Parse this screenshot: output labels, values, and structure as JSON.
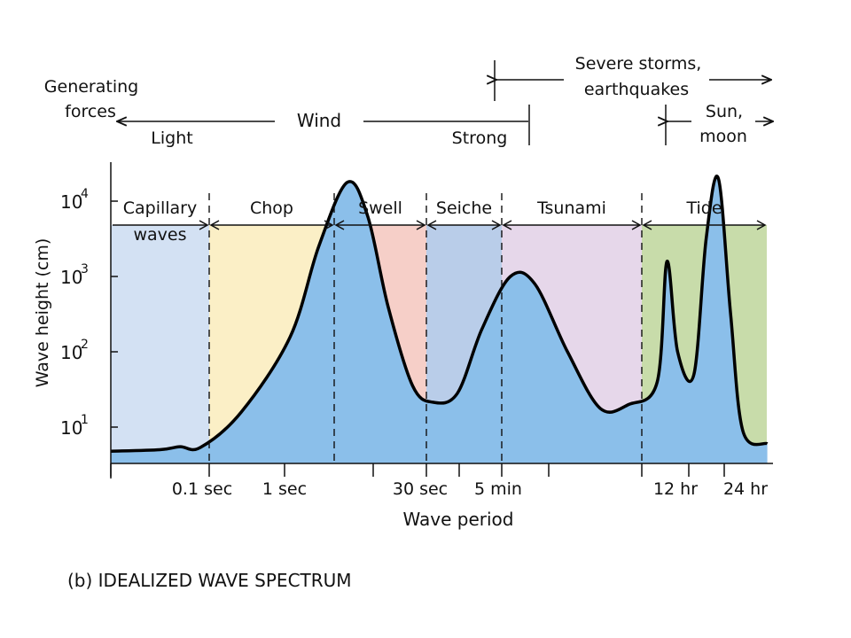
{
  "figure_caption": "(b) IDEALIZED WAVE SPECTRUM",
  "generating_forces": {
    "label_line1": "Generating",
    "label_line2": "forces",
    "wind": "Wind",
    "light": "Light",
    "strong": "Strong",
    "storms_line1": "Severe storms,",
    "storms_line2": "earthquakes",
    "sun_line1": "Sun,",
    "sun_line2": "moon"
  },
  "chart_data": {
    "type": "area",
    "title": "",
    "ylabel": "Wave height (cm)",
    "xlabel": "Wave period",
    "y_scale": "log",
    "y_ticks": [
      {
        "base": "10",
        "exp": "1",
        "value": 10
      },
      {
        "base": "10",
        "exp": "2",
        "value": 100
      },
      {
        "base": "10",
        "exp": "3",
        "value": 1000
      },
      {
        "base": "10",
        "exp": "4",
        "value": 10000
      }
    ],
    "x_tick_labels": [
      "0.1 sec",
      "1 sec",
      "30 sec",
      "5 min",
      "12 hr",
      "24 hr"
    ],
    "regions": [
      {
        "line1": "Capillary",
        "line2": "waves",
        "color": "#d3e1f3"
      },
      {
        "line1": "Chop",
        "line2": "",
        "color": "#fbefc6"
      },
      {
        "line1": "Swell",
        "line2": "",
        "color": "#f6cfc8"
      },
      {
        "line1": "Seiche",
        "line2": "",
        "color": "#b9cde9"
      },
      {
        "line1": "Tsunami",
        "line2": "",
        "color": "#e6d7ea"
      },
      {
        "line1": "Tide",
        "line2": "",
        "color": "#c8dcaa"
      }
    ],
    "curve_color": "#8bbfea",
    "curve_points_log_height": [
      [
        0,
        0.68
      ],
      [
        0.6,
        0.7
      ],
      [
        0.85,
        0.74
      ],
      [
        1.1,
        0.73
      ],
      [
        1.6,
        1.2
      ],
      [
        2.2,
        2.2
      ],
      [
        2.55,
        3.4
      ],
      [
        2.9,
        4.25
      ],
      [
        3.15,
        3.8
      ],
      [
        3.4,
        2.6
      ],
      [
        3.7,
        1.55
      ],
      [
        3.95,
        1.33
      ],
      [
        4.25,
        1.45
      ],
      [
        4.55,
        2.3
      ],
      [
        4.9,
        3.0
      ],
      [
        5.2,
        2.9
      ],
      [
        5.6,
        2.0
      ],
      [
        6.0,
        1.25
      ],
      [
        6.35,
        1.3
      ],
      [
        6.7,
        1.6
      ],
      [
        6.82,
        3.2
      ],
      [
        6.95,
        2.0
      ],
      [
        7.15,
        1.7
      ],
      [
        7.3,
        3.5
      ],
      [
        7.45,
        4.3
      ],
      [
        7.6,
        2.5
      ],
      [
        7.75,
        0.95
      ],
      [
        8.05,
        0.78
      ]
    ]
  }
}
